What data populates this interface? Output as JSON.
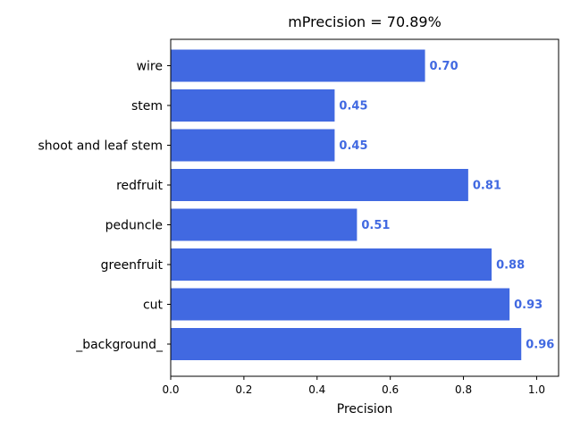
{
  "chart_data": {
    "type": "bar",
    "orientation": "horizontal",
    "title": "mPrecision = 70.89%",
    "xlabel": "Precision",
    "ylabel": "",
    "categories": [
      "wire",
      "stem",
      "shoot and leaf stem",
      "redfruit",
      "peduncle",
      "greenfruit",
      "cut",
      "_background_"
    ],
    "values": [
      0.695,
      0.448,
      0.448,
      0.813,
      0.509,
      0.877,
      0.926,
      0.958
    ],
    "data_labels": [
      "0.70",
      "0.45",
      "0.45",
      "0.81",
      "0.51",
      "0.88",
      "0.93",
      "0.96"
    ],
    "xlim": [
      0,
      1.06
    ],
    "xticks": [
      0.0,
      0.2,
      0.4,
      0.6,
      0.8,
      1.0
    ],
    "xtick_labels": [
      "0.0",
      "0.2",
      "0.4",
      "0.6",
      "0.8",
      "1.0"
    ],
    "grid": false,
    "bar_color": "#4169e1",
    "label_color": "#4169e1"
  }
}
